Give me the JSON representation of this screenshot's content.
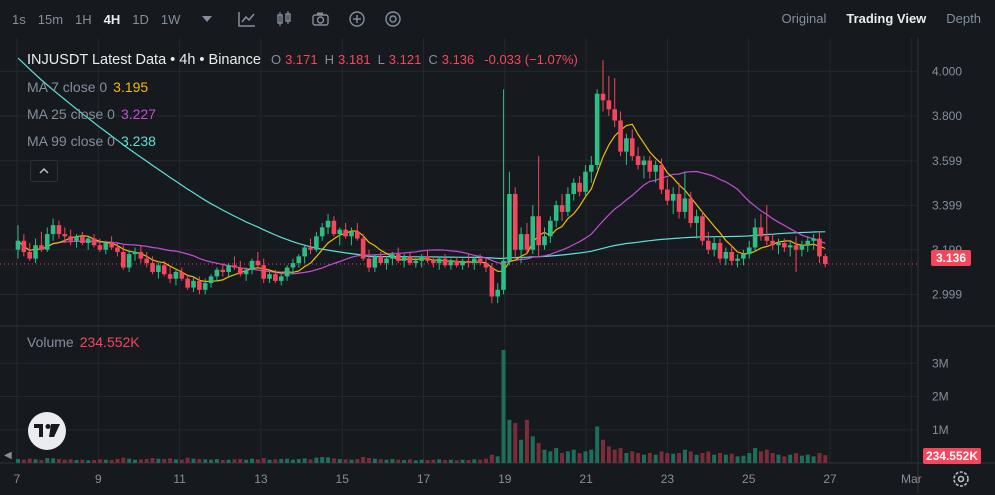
{
  "toolbar": {
    "timeframes": [
      {
        "label": "1s",
        "active": false
      },
      {
        "label": "15m",
        "active": false
      },
      {
        "label": "1H",
        "active": false
      },
      {
        "label": "4H",
        "active": true
      },
      {
        "label": "1D",
        "active": false
      },
      {
        "label": "1W",
        "active": false
      }
    ],
    "icons": [
      "chevron-down-icon",
      "indicators-icon",
      "candle-type-icon",
      "camera-icon",
      "add-circle-icon",
      "target-icon"
    ],
    "views": [
      {
        "label": "Original",
        "active": false
      },
      {
        "label": "Trading View",
        "active": true
      },
      {
        "label": "Depth",
        "active": false
      }
    ]
  },
  "legend": {
    "title": "INJUSDT Latest Data • 4h • Binance",
    "open_label": "O",
    "open": "3.171",
    "high_label": "H",
    "high": "3.181",
    "low_label": "L",
    "low": "3.121",
    "close_label": "C",
    "close": "3.136",
    "change": "-0.033 (−1.07%)"
  },
  "ma": [
    {
      "label": "MA 7 close 0",
      "value": "3.195",
      "color": "#f0b90b"
    },
    {
      "label": "MA 25 close 0",
      "value": "3.227",
      "color": "#c34ed6"
    },
    {
      "label": "MA 99 close 0",
      "value": "3.238",
      "color": "#5fe0d6"
    }
  ],
  "collapse_icon": "chevron-up-icon",
  "volume": {
    "label": "Volume",
    "value": "234.552K"
  },
  "current_price": "3.136",
  "colors": {
    "up": "#2ebd85",
    "down": "#f6465d",
    "up_vol": "#1f6e5c",
    "down_vol": "#7c2c39"
  },
  "chart_data": {
    "type": "candlestick",
    "y_ticks": [
      "4.000",
      "3.800",
      "3.599",
      "3.399",
      "3.199",
      "2.999"
    ],
    "ylim": [
      2.88,
      4.15
    ],
    "x_ticks": [
      "7",
      "9",
      "11",
      "13",
      "15",
      "17",
      "19",
      "21",
      "23",
      "25",
      "27",
      "Mar"
    ],
    "volume_ticks": [
      "3M",
      "2M",
      "1M"
    ],
    "volume_ylim": [
      0,
      4000000
    ],
    "grid": true,
    "candles": [
      [
        3.2,
        3.31,
        3.16,
        3.24,
        120000
      ],
      [
        3.24,
        3.27,
        3.17,
        3.19,
        100000
      ],
      [
        3.19,
        3.23,
        3.15,
        3.16,
        130000
      ],
      [
        3.16,
        3.25,
        3.14,
        3.22,
        110000
      ],
      [
        3.22,
        3.28,
        3.19,
        3.2,
        90000
      ],
      [
        3.2,
        3.3,
        3.19,
        3.27,
        150000
      ],
      [
        3.27,
        3.34,
        3.24,
        3.31,
        140000
      ],
      [
        3.31,
        3.33,
        3.25,
        3.27,
        120000
      ],
      [
        3.27,
        3.3,
        3.23,
        3.26,
        100000
      ],
      [
        3.26,
        3.29,
        3.22,
        3.24,
        110000
      ],
      [
        3.24,
        3.27,
        3.21,
        3.26,
        90000
      ],
      [
        3.26,
        3.28,
        3.22,
        3.23,
        100000
      ],
      [
        3.23,
        3.26,
        3.2,
        3.25,
        80000
      ],
      [
        3.25,
        3.27,
        3.21,
        3.22,
        90000
      ],
      [
        3.22,
        3.25,
        3.19,
        3.2,
        110000
      ],
      [
        3.2,
        3.24,
        3.18,
        3.23,
        100000
      ],
      [
        3.23,
        3.26,
        3.2,
        3.21,
        90000
      ],
      [
        3.21,
        3.23,
        3.17,
        3.19,
        120000
      ],
      [
        3.19,
        3.22,
        3.11,
        3.12,
        160000
      ],
      [
        3.12,
        3.2,
        3.1,
        3.18,
        130000
      ],
      [
        3.18,
        3.21,
        3.15,
        3.19,
        100000
      ],
      [
        3.19,
        3.22,
        3.14,
        3.16,
        110000
      ],
      [
        3.16,
        3.19,
        3.12,
        3.14,
        120000
      ],
      [
        3.14,
        3.17,
        3.09,
        3.1,
        150000
      ],
      [
        3.1,
        3.14,
        3.07,
        3.13,
        130000
      ],
      [
        3.13,
        3.15,
        3.08,
        3.09,
        120000
      ],
      [
        3.09,
        3.12,
        3.05,
        3.07,
        140000
      ],
      [
        3.07,
        3.11,
        3.04,
        3.1,
        110000
      ],
      [
        3.1,
        3.12,
        3.06,
        3.07,
        100000
      ],
      [
        3.07,
        3.09,
        3.02,
        3.03,
        160000
      ],
      [
        3.03,
        3.08,
        3.01,
        3.06,
        130000
      ],
      [
        3.06,
        3.08,
        3.0,
        3.02,
        120000
      ],
      [
        3.02,
        3.07,
        3.0,
        3.05,
        110000
      ],
      [
        3.05,
        3.09,
        3.03,
        3.08,
        100000
      ],
      [
        3.08,
        3.12,
        3.06,
        3.11,
        120000
      ],
      [
        3.11,
        3.14,
        3.08,
        3.1,
        90000
      ],
      [
        3.1,
        3.14,
        3.08,
        3.13,
        100000
      ],
      [
        3.13,
        3.17,
        3.11,
        3.12,
        110000
      ],
      [
        3.12,
        3.15,
        3.08,
        3.09,
        120000
      ],
      [
        3.09,
        3.12,
        3.06,
        3.11,
        100000
      ],
      [
        3.11,
        3.16,
        3.09,
        3.15,
        130000
      ],
      [
        3.15,
        3.19,
        3.12,
        3.13,
        110000
      ],
      [
        3.13,
        3.16,
        3.05,
        3.07,
        150000
      ],
      [
        3.07,
        3.1,
        3.05,
        3.09,
        100000
      ],
      [
        3.09,
        3.11,
        3.05,
        3.06,
        110000
      ],
      [
        3.06,
        3.1,
        3.04,
        3.08,
        120000
      ],
      [
        3.08,
        3.13,
        3.06,
        3.12,
        130000
      ],
      [
        3.12,
        3.16,
        3.09,
        3.14,
        100000
      ],
      [
        3.14,
        3.18,
        3.12,
        3.17,
        120000
      ],
      [
        3.17,
        3.22,
        3.14,
        3.21,
        140000
      ],
      [
        3.21,
        3.25,
        3.18,
        3.2,
        110000
      ],
      [
        3.2,
        3.28,
        3.19,
        3.26,
        160000
      ],
      [
        3.26,
        3.32,
        3.24,
        3.3,
        180000
      ],
      [
        3.3,
        3.36,
        3.27,
        3.33,
        170000
      ],
      [
        3.33,
        3.35,
        3.26,
        3.27,
        140000
      ],
      [
        3.27,
        3.3,
        3.22,
        3.29,
        120000
      ],
      [
        3.29,
        3.32,
        3.25,
        3.26,
        110000
      ],
      [
        3.26,
        3.3,
        3.22,
        3.28,
        100000
      ],
      [
        3.28,
        3.32,
        3.24,
        3.25,
        120000
      ],
      [
        3.25,
        3.27,
        3.15,
        3.16,
        180000
      ],
      [
        3.16,
        3.2,
        3.1,
        3.12,
        150000
      ],
      [
        3.12,
        3.18,
        3.1,
        3.17,
        130000
      ],
      [
        3.17,
        3.19,
        3.13,
        3.14,
        110000
      ],
      [
        3.14,
        3.17,
        3.11,
        3.16,
        100000
      ],
      [
        3.16,
        3.19,
        3.13,
        3.18,
        120000
      ],
      [
        3.18,
        3.21,
        3.14,
        3.15,
        100000
      ],
      [
        3.15,
        3.18,
        3.12,
        3.17,
        90000
      ],
      [
        3.17,
        3.19,
        3.13,
        3.14,
        110000
      ],
      [
        3.14,
        3.17,
        3.12,
        3.15,
        80000
      ],
      [
        3.15,
        3.18,
        3.12,
        3.17,
        100000
      ],
      [
        3.17,
        3.2,
        3.14,
        3.15,
        90000
      ],
      [
        3.15,
        3.17,
        3.12,
        3.14,
        100000
      ],
      [
        3.14,
        3.17,
        3.11,
        3.16,
        110000
      ],
      [
        3.16,
        3.18,
        3.12,
        3.13,
        90000
      ],
      [
        3.13,
        3.16,
        3.11,
        3.15,
        100000
      ],
      [
        3.15,
        3.17,
        3.12,
        3.13,
        80000
      ],
      [
        3.13,
        3.16,
        3.11,
        3.15,
        100000
      ],
      [
        3.15,
        3.18,
        3.12,
        3.14,
        90000
      ],
      [
        3.14,
        3.17,
        3.11,
        3.16,
        110000
      ],
      [
        3.16,
        3.18,
        3.13,
        3.14,
        100000
      ],
      [
        3.14,
        3.16,
        3.1,
        3.12,
        130000
      ],
      [
        3.12,
        3.14,
        2.96,
        2.99,
        250000
      ],
      [
        2.99,
        3.05,
        2.96,
        3.02,
        200000
      ],
      [
        3.02,
        3.92,
        3.0,
        3.15,
        3400000
      ],
      [
        3.15,
        3.55,
        3.13,
        3.45,
        1300000
      ],
      [
        3.45,
        3.48,
        3.15,
        3.2,
        1200000
      ],
      [
        3.2,
        3.3,
        3.14,
        3.27,
        700000
      ],
      [
        3.27,
        3.32,
        3.18,
        3.2,
        1300000
      ],
      [
        3.2,
        3.4,
        3.18,
        3.35,
        800000
      ],
      [
        3.35,
        3.62,
        3.17,
        3.22,
        600000
      ],
      [
        3.22,
        3.3,
        3.2,
        3.26,
        400000
      ],
      [
        3.26,
        3.35,
        3.23,
        3.33,
        350000
      ],
      [
        3.33,
        3.42,
        3.3,
        3.4,
        450000
      ],
      [
        3.4,
        3.45,
        3.33,
        3.37,
        300000
      ],
      [
        3.37,
        3.48,
        3.35,
        3.45,
        350000
      ],
      [
        3.45,
        3.52,
        3.42,
        3.5,
        400000
      ],
      [
        3.5,
        3.53,
        3.44,
        3.46,
        300000
      ],
      [
        3.46,
        3.58,
        3.44,
        3.55,
        350000
      ],
      [
        3.55,
        3.62,
        3.5,
        3.58,
        400000
      ],
      [
        3.58,
        3.92,
        3.56,
        3.9,
        1100000
      ],
      [
        3.9,
        4.05,
        3.82,
        3.87,
        700000
      ],
      [
        3.87,
        3.98,
        3.8,
        3.83,
        500000
      ],
      [
        3.83,
        3.97,
        3.75,
        3.78,
        400000
      ],
      [
        3.78,
        3.82,
        3.62,
        3.64,
        450000
      ],
      [
        3.64,
        3.72,
        3.58,
        3.7,
        300000
      ],
      [
        3.7,
        3.74,
        3.6,
        3.62,
        350000
      ],
      [
        3.62,
        3.66,
        3.56,
        3.58,
        300000
      ],
      [
        3.58,
        3.62,
        3.52,
        3.6,
        250000
      ],
      [
        3.6,
        3.62,
        3.52,
        3.55,
        300000
      ],
      [
        3.55,
        3.6,
        3.5,
        3.58,
        250000
      ],
      [
        3.58,
        3.61,
        3.45,
        3.47,
        350000
      ],
      [
        3.47,
        3.52,
        3.4,
        3.42,
        300000
      ],
      [
        3.42,
        3.48,
        3.36,
        3.45,
        280000
      ],
      [
        3.45,
        3.5,
        3.34,
        3.37,
        300000
      ],
      [
        3.37,
        3.55,
        3.34,
        3.43,
        400000
      ],
      [
        3.43,
        3.46,
        3.3,
        3.32,
        350000
      ],
      [
        3.32,
        3.38,
        3.25,
        3.35,
        250000
      ],
      [
        3.35,
        3.37,
        3.22,
        3.24,
        300000
      ],
      [
        3.24,
        3.28,
        3.18,
        3.2,
        350000
      ],
      [
        3.2,
        3.26,
        3.17,
        3.23,
        250000
      ],
      [
        3.23,
        3.25,
        3.14,
        3.16,
        300000
      ],
      [
        3.16,
        3.21,
        3.13,
        3.19,
        250000
      ],
      [
        3.19,
        3.22,
        3.13,
        3.15,
        280000
      ],
      [
        3.15,
        3.18,
        3.12,
        3.16,
        200000
      ],
      [
        3.16,
        3.2,
        3.13,
        3.18,
        220000
      ],
      [
        3.18,
        3.24,
        3.16,
        3.21,
        300000
      ],
      [
        3.21,
        3.34,
        3.19,
        3.3,
        450000
      ],
      [
        3.3,
        3.36,
        3.24,
        3.26,
        350000
      ],
      [
        3.26,
        3.4,
        3.22,
        3.24,
        400000
      ],
      [
        3.24,
        3.27,
        3.2,
        3.22,
        300000
      ],
      [
        3.22,
        3.25,
        3.18,
        3.23,
        250000
      ],
      [
        3.23,
        3.25,
        3.19,
        3.21,
        200000
      ],
      [
        3.21,
        3.24,
        3.17,
        3.22,
        250000
      ],
      [
        3.22,
        3.26,
        3.1,
        3.2,
        300000
      ],
      [
        3.2,
        3.24,
        3.17,
        3.22,
        220000
      ],
      [
        3.22,
        3.26,
        3.19,
        3.24,
        250000
      ],
      [
        3.24,
        3.27,
        3.2,
        3.25,
        200000
      ],
      [
        3.25,
        3.28,
        3.14,
        3.17,
        300000
      ],
      [
        3.171,
        3.181,
        3.121,
        3.136,
        234552
      ]
    ]
  }
}
